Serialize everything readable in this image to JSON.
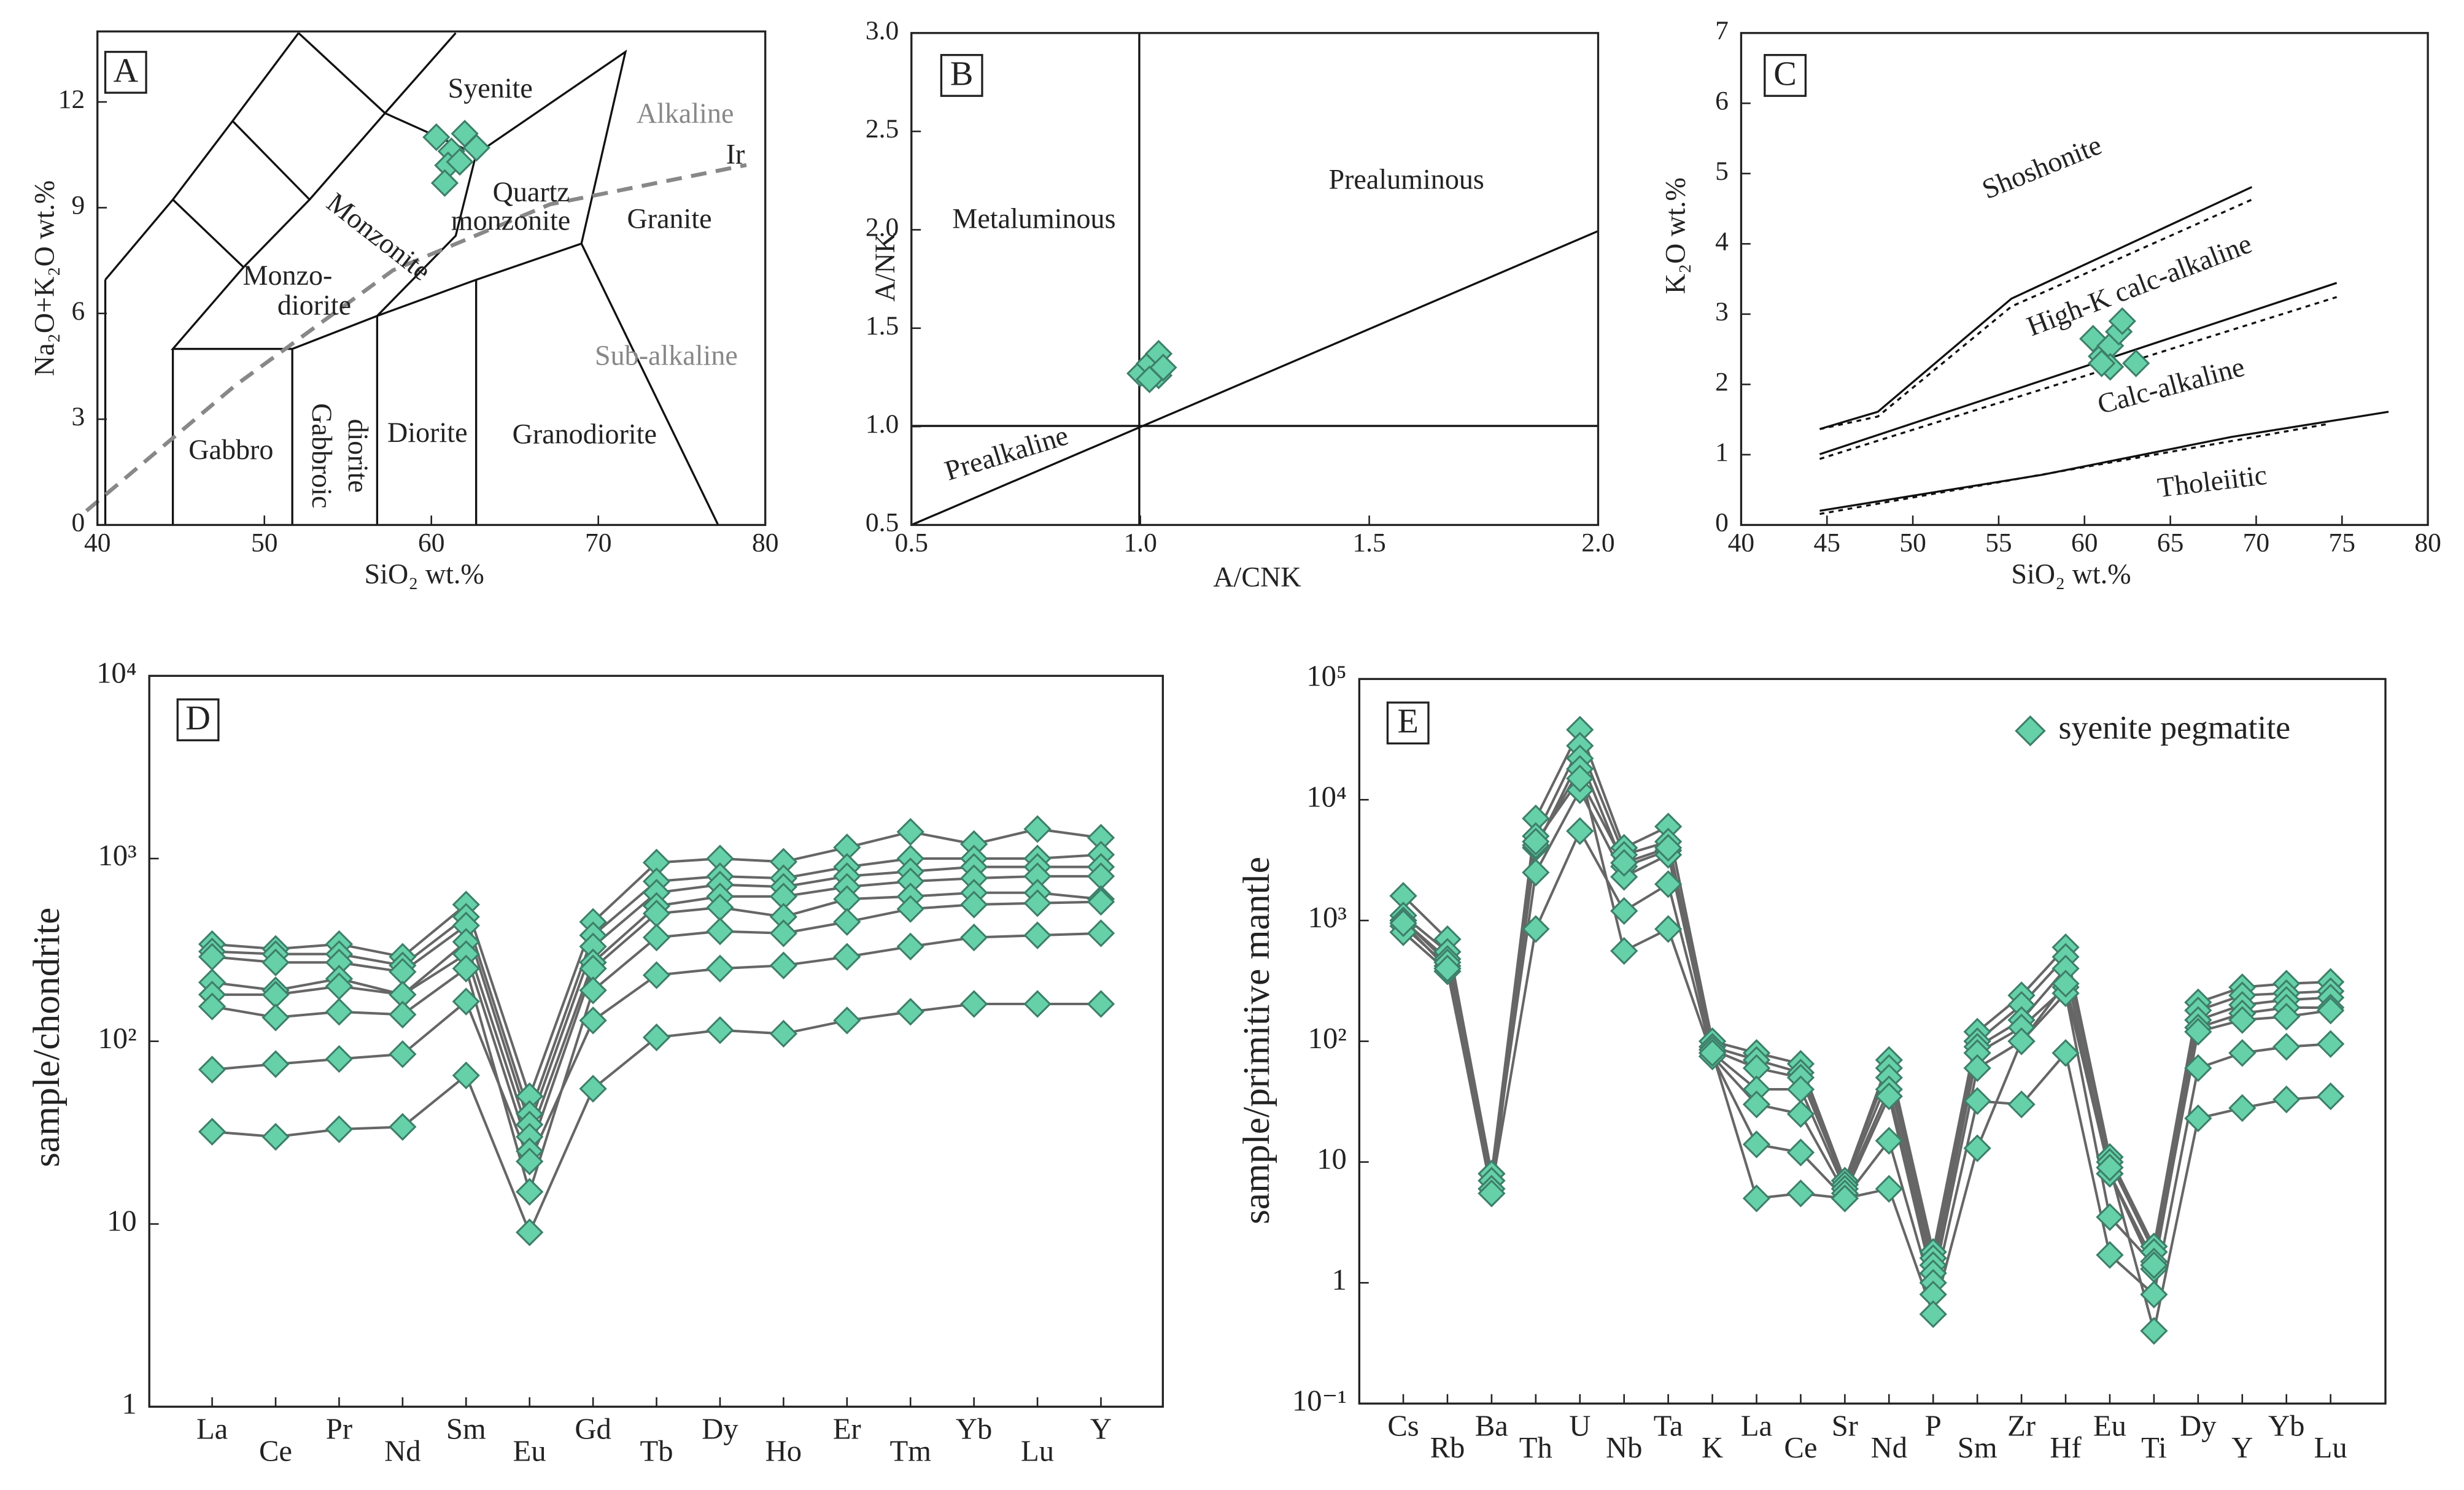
{
  "chart_data": [
    {
      "type": "scatter",
      "panel_label": "A",
      "x_label": "SiO₂ wt.%",
      "y_label": "Na₂O+K₂O wt.%",
      "xlim": [
        40,
        80
      ],
      "ylim": [
        0,
        14
      ],
      "xticks": [
        40,
        50,
        60,
        70,
        80
      ],
      "yticks": [
        0,
        3,
        6,
        9,
        12
      ],
      "color": "#66d1a8",
      "x": [
        60.3,
        61.2,
        62.0,
        62.7,
        61.0,
        61.7,
        60.8
      ],
      "values": [
        11.0,
        10.6,
        11.1,
        10.7,
        10.2,
        10.3,
        9.7
      ],
      "annotations": [
        "Syenite",
        "Alkaline",
        "Ir",
        "Quartz",
        "monzonite",
        "Granite",
        "Monzonite",
        "Monzo-",
        "diorite",
        "Sub-alkaline",
        "Gabbro",
        "Gabbroic",
        "diorite",
        "Diorite",
        "Granodiorite"
      ]
    },
    {
      "type": "scatter",
      "panel_label": "B",
      "x_label": "A/CNK",
      "y_label": "A/NK",
      "xlim": [
        0.5,
        2.0
      ],
      "ylim": [
        0.5,
        3.0
      ],
      "xticks": [
        0.5,
        {
          "value": 1,
          "label": "1.0"
        },
        1.5,
        {
          "value": 2,
          "label": "2.0"
        }
      ],
      "yticks": [
        0.5,
        {
          "value": 1,
          "label": "1.0"
        },
        1.5,
        {
          "value": 2,
          "label": "2.0"
        },
        2.5,
        {
          "value": 3,
          "label": "3.0"
        }
      ],
      "color": "#66d1a8",
      "x": [
        1.0,
        1.02,
        1.04,
        1.04,
        1.02,
        1.05
      ],
      "values": [
        1.27,
        1.32,
        1.37,
        1.26,
        1.24,
        1.3
      ],
      "annotations": [
        "Metaluminous",
        "Prealuminous",
        "Prealkaline"
      ]
    },
    {
      "type": "scatter",
      "panel_label": "C",
      "x_label": "SiO₂ wt.%",
      "y_label": "K₂O wt.%",
      "xlim": [
        40,
        80
      ],
      "ylim": [
        0,
        7
      ],
      "xticks": [
        40,
        45,
        50,
        55,
        60,
        65,
        70,
        75,
        80
      ],
      "yticks": [
        0,
        1,
        2,
        3,
        4,
        5,
        6,
        7
      ],
      "color": "#66d1a8",
      "x": [
        60.5,
        61.0,
        61.5,
        62.0,
        62.2,
        61.5,
        63.0,
        61.0
      ],
      "values": [
        2.65,
        2.4,
        2.55,
        2.75,
        2.9,
        2.25,
        2.3,
        2.3
      ],
      "annotations": [
        "Shoshonite",
        "High-K calc-alkaline",
        "Calc-alkaline",
        "Tholeiitic"
      ]
    },
    {
      "type": "line",
      "panel_label": "D",
      "y_label": "sample/chondrite",
      "log_y": true,
      "ylim": [
        1,
        10000
      ],
      "yticks": [
        1,
        10,
        {
          "value": 100,
          "label": "10²"
        },
        {
          "value": 1000,
          "label": "10³"
        },
        {
          "value": 10000,
          "label": "10⁴"
        }
      ],
      "categories": [
        "La",
        "Ce",
        "Pr",
        "Nd",
        "Sm",
        "Eu",
        "Gd",
        "Tb",
        "Dy",
        "Ho",
        "Er",
        "Tm",
        "Yb",
        "Lu",
        "Y"
      ],
      "color": "#66d1a8",
      "line_color": "#666666",
      "series": [
        {
          "values": [
            340,
            320,
            340,
            290,
            560,
            50,
            450,
            950,
            1000,
            960,
            1150,
            1400,
            1200,
            1450,
            1300
          ]
        },
        {
          "values": [
            310,
            300,
            300,
            260,
            480,
            40,
            380,
            750,
            800,
            780,
            900,
            1000,
            1000,
            1000,
            1050
          ]
        },
        {
          "values": [
            290,
            270,
            270,
            240,
            430,
            35,
            330,
            650,
            720,
            700,
            800,
            850,
            900,
            900,
            900
          ]
        },
        {
          "values": [
            210,
            190,
            220,
            180,
            350,
            30,
            270,
            550,
            620,
            620,
            700,
            750,
            780,
            800,
            800
          ]
        },
        {
          "values": [
            180,
            180,
            200,
            180,
            300,
            25,
            250,
            500,
            540,
            480,
            600,
            620,
            650,
            650,
            600
          ]
        },
        {
          "values": [
            155,
            135,
            145,
            140,
            250,
            15,
            190,
            370,
            400,
            390,
            450,
            530,
            560,
            570,
            580
          ]
        },
        {
          "values": [
            70,
            75,
            80,
            85,
            165,
            22,
            130,
            230,
            250,
            260,
            290,
            330,
            370,
            380,
            390
          ]
        },
        {
          "values": [
            32,
            30,
            33,
            34,
            65,
            9,
            55,
            105,
            115,
            110,
            130,
            145,
            160,
            160,
            160
          ]
        }
      ]
    },
    {
      "type": "line",
      "panel_label": "E",
      "y_label": "sample/primitive mantle",
      "log_y": true,
      "legend": "syenite pegmatite",
      "ylim": [
        0.1,
        100000
      ],
      "yticks": [
        {
          "value": 0.1,
          "label": "10⁻¹"
        },
        1,
        10,
        {
          "value": 100,
          "label": "10²"
        },
        {
          "value": 1000,
          "label": "10³"
        },
        {
          "value": 10000,
          "label": "10⁴"
        },
        {
          "value": 100000,
          "label": "10⁵"
        }
      ],
      "categories": [
        "Cs",
        "Rb",
        "Ba",
        "Th",
        "U",
        "Nb",
        "Ta",
        "K",
        "La",
        "Ce",
        "Sr",
        "Nd",
        "P",
        "Sm",
        "Zr",
        "Hf",
        "Eu",
        "Ti",
        "Dy",
        "Y",
        "Yb",
        "Lu"
      ],
      "color": "#66d1a8",
      "line_color": "#666666",
      "series": [
        {
          "values": [
            1600,
            700,
            8,
            7000,
            38000,
            4000,
            6000,
            100,
            80,
            65,
            7,
            70,
            1.8,
            120,
            240,
            600,
            11,
            2,
            210,
            280,
            300,
            310
          ]
        },
        {
          "values": [
            1100,
            550,
            8,
            5000,
            28000,
            3500,
            4500,
            90,
            70,
            55,
            7,
            60,
            1.6,
            100,
            200,
            500,
            10,
            1.8,
            180,
            240,
            250,
            260
          ]
        },
        {
          "values": [
            1000,
            480,
            7,
            4000,
            22000,
            2800,
            3800,
            85,
            60,
            50,
            6.5,
            50,
            1.4,
            90,
            150,
            400,
            8,
            1.5,
            150,
            200,
            220,
            230
          ]
        },
        {
          "values": [
            900,
            420,
            7,
            2500,
            12000,
            2300,
            3500,
            80,
            40,
            40,
            6,
            40,
            1.2,
            80,
            130,
            280,
            8,
            1.3,
            130,
            170,
            190,
            190
          ]
        },
        {
          "values": [
            800,
            380,
            6,
            850,
            5500,
            1200,
            2000,
            75,
            30,
            25,
            5.5,
            35,
            1,
            60,
            100,
            250,
            3.5,
            1.4,
            120,
            150,
            160,
            180
          ]
        },
        {
          "values": [
            1000,
            450,
            6,
            4200,
            18000,
            560,
            850,
            75,
            14,
            12,
            5,
            15,
            0.8,
            32,
            30,
            80,
            1.7,
            0.8,
            60,
            80,
            90,
            95
          ]
        },
        {
          "values": [
            950,
            400,
            5.5,
            4500,
            15000,
            3000,
            4000,
            80,
            5,
            5.5,
            5,
            6,
            0.55,
            13,
            100,
            300,
            9,
            0.4,
            23,
            28,
            33,
            35
          ]
        }
      ]
    }
  ]
}
